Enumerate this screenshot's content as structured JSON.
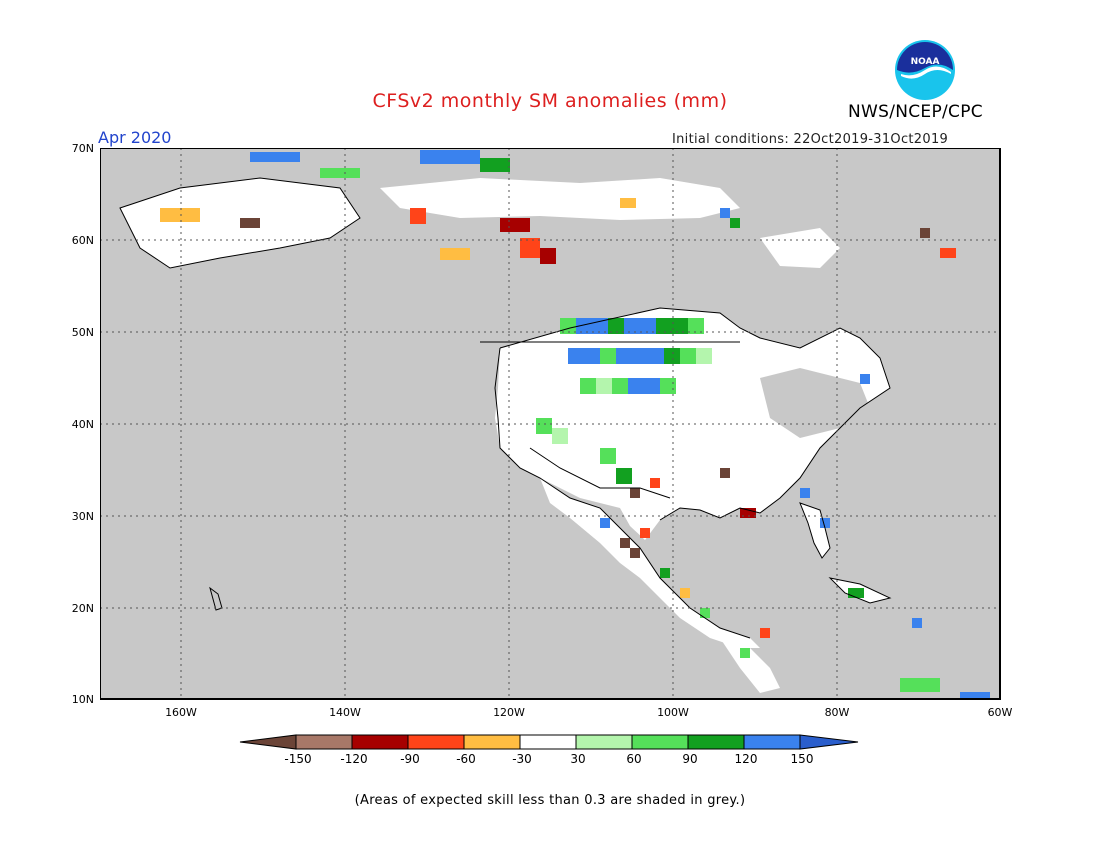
{
  "title": "CFSv2 monthly SM anomalies (mm)",
  "period": "Apr 2020",
  "organization": "NWS/NCEP/CPC",
  "logo_text": "NOAA",
  "initial_conditions": "Initial conditions: 22Oct2019-31Oct2019",
  "footnote": "(Areas of expected skill less than 0.3 are shaded in grey.)",
  "lat_labels": [
    "70N",
    "60N",
    "50N",
    "40N",
    "30N",
    "20N",
    "10N"
  ],
  "lon_labels": [
    "160W",
    "140W",
    "120W",
    "100W",
    "80W",
    "60W"
  ],
  "colorbar": {
    "labels": [
      "-150",
      "-120",
      "-90",
      "-60",
      "-30",
      "30",
      "60",
      "90",
      "120",
      "150"
    ],
    "colors": [
      "#6b4437",
      "#a87868",
      "#a60000",
      "#ff4419",
      "#ffbd42",
      "#ffffff",
      "#b4f5ad",
      "#55e05a",
      "#12a020",
      "#3a82ee",
      "#2a5ecc"
    ]
  },
  "colors": {
    "grey_low_skill": "#c8c8c8",
    "land_no_anomaly": "#ffffff",
    "coastline": "#000000"
  }
}
